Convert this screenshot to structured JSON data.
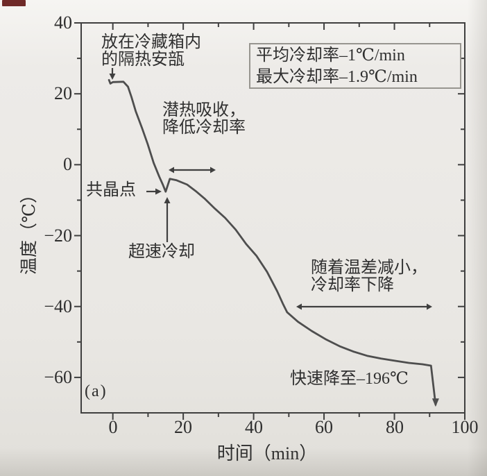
{
  "scan_mark_color": "#6f2a28",
  "ink_color": "#3f3f3f",
  "curve_color": "#4e4e4e",
  "panel_label": "(a)",
  "axis": {
    "xlabel": "时间（min）",
    "ylabel": "温度（℃）",
    "xticks": [
      "0",
      "20",
      "40",
      "60",
      "80",
      "100"
    ],
    "yticks": [
      "40",
      "20",
      "0",
      "−20",
      "−40",
      "−60"
    ]
  },
  "legend": {
    "line1": "平均冷却率–1℃/min",
    "line2": "最大冷却率–1.9℃/min"
  },
  "annotations": {
    "fridge": "放在冷藏箱内\n的隔热安瓿",
    "latent_heat": "潜热吸收，\n降低冷却率",
    "eutectic_point": "共晶点",
    "rapid_cooling": "超速冷却",
    "temp_diff": "随着温差减小，\n冷却率下降",
    "plunge": "快速降至–196℃"
  },
  "chart_data": {
    "type": "line",
    "title": "",
    "xlabel": "时间（min）",
    "ylabel": "温度（℃）",
    "xlim": [
      -9,
      100
    ],
    "ylim": [
      -70,
      40
    ],
    "grid": false,
    "legend_position": "upper right inside",
    "xticks_major": [
      0,
      20,
      40,
      60,
      80,
      100
    ],
    "xticks_minor": [
      10,
      30,
      50,
      70,
      90
    ],
    "yticks_major": [
      40,
      20,
      0,
      -20,
      -40,
      -60
    ],
    "yticks_minor": [
      30,
      10,
      -10,
      -30,
      -50
    ],
    "series": [
      {
        "name": "cooling-curve",
        "x": [
          -1.1,
          -0.7,
          0,
          3,
          4.3,
          5.3,
          6.5,
          8.3,
          9.9,
          11.6,
          13.2,
          14.2,
          15.0,
          16.2,
          18.1,
          21.1,
          23.5,
          26.0,
          29.0,
          31.9,
          34.9,
          37.9,
          40.8,
          43.8,
          46.7,
          48.3,
          49.5,
          52.6,
          56.5,
          60.4,
          64.4,
          68.3,
          72.2,
          76.2,
          80.1,
          84.1,
          88.0,
          90.4,
          91.7
        ],
        "y": [
          23.9,
          22.9,
          23.3,
          23.4,
          22.0,
          19.1,
          15.1,
          10.3,
          5.8,
          0.5,
          -3.4,
          -5.6,
          -7.6,
          -4.0,
          -4.4,
          -5.6,
          -7.4,
          -9.5,
          -12.4,
          -15.0,
          -18.3,
          -22.4,
          -25.7,
          -30.2,
          -35.7,
          -39.2,
          -41.6,
          -44.3,
          -46.9,
          -49.2,
          -51.2,
          -52.7,
          -53.9,
          -54.7,
          -55.3,
          -55.9,
          -56.3,
          -56.7,
          -67.7
        ]
      }
    ],
    "end_arrow": "down, toward −196℃",
    "key_points": {
      "start_temperature_C": 23,
      "eutectic_point": {
        "t_min": 15,
        "T_C": -7.6
      },
      "plunge_start": {
        "t_min": 90.4,
        "T_C": -56.7
      }
    }
  }
}
